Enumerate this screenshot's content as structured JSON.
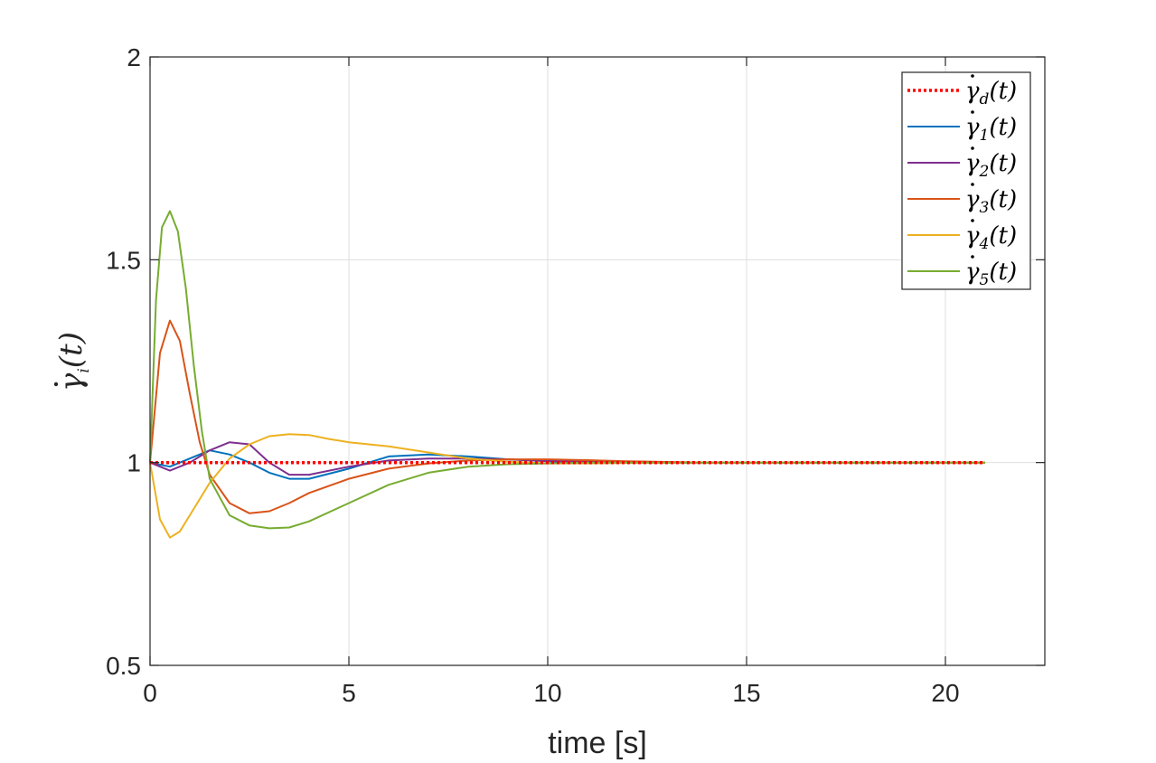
{
  "chart_data": {
    "type": "line",
    "title": "",
    "xlabel": "time [s]",
    "ylabel": {
      "sym": "γ",
      "sub": "i",
      "arg": "(t)"
    },
    "xlim": [
      0,
      22.5
    ],
    "ylim": [
      0.5,
      2
    ],
    "x_ticks": [
      0,
      5,
      10,
      15,
      20
    ],
    "x_tick_labels": [
      "0",
      "5",
      "10",
      "15",
      "20"
    ],
    "y_ticks": [
      0.5,
      1,
      1.5,
      2
    ],
    "y_tick_labels": [
      "0.5",
      "1",
      "1.5",
      "2"
    ],
    "grid": true,
    "legend_position": "top-right",
    "series": [
      {
        "name": "γ̇d(t)",
        "sym": "γ",
        "sub": "d",
        "arg": "(t)",
        "color": "#ff0000",
        "style": "dotted",
        "x": [
          0,
          21
        ],
        "values": [
          1,
          1
        ]
      },
      {
        "name": "γ̇1(t)",
        "sym": "γ",
        "sub": "1",
        "arg": "(t)",
        "color": "#0072bd",
        "style": "solid",
        "x": [
          0,
          0.5,
          1,
          1.5,
          2,
          2.5,
          3,
          3.5,
          4,
          5,
          6,
          7,
          8,
          9,
          10,
          11,
          12,
          14,
          17,
          21
        ],
        "values": [
          1,
          0.99,
          1.01,
          1.03,
          1.02,
          1.0,
          0.975,
          0.96,
          0.96,
          0.985,
          1.015,
          1.02,
          1.015,
          1.008,
          1.003,
          1.0,
          1.0,
          1.0,
          1.0,
          1.0
        ]
      },
      {
        "name": "γ̇2(t)",
        "sym": "γ",
        "sub": "2",
        "arg": "(t)",
        "color": "#7e2f8e",
        "style": "solid",
        "x": [
          0,
          0.5,
          1,
          1.5,
          2,
          2.5,
          3,
          3.5,
          4,
          5,
          6,
          7,
          8,
          9,
          10,
          11,
          12,
          14,
          17,
          21
        ],
        "values": [
          1,
          0.98,
          1.0,
          1.03,
          1.05,
          1.045,
          1.0,
          0.97,
          0.97,
          0.99,
          1.005,
          1.01,
          1.01,
          1.008,
          1.004,
          1.002,
          1.0,
          1.0,
          1.0,
          1.0
        ]
      },
      {
        "name": "γ̇3(t)",
        "sym": "γ",
        "sub": "3",
        "arg": "(t)",
        "color": "#d95319",
        "style": "solid",
        "x": [
          0,
          0.25,
          0.5,
          0.75,
          1,
          1.25,
          1.5,
          2,
          2.5,
          3,
          3.5,
          4,
          5,
          6,
          7,
          8,
          9,
          10,
          11,
          12,
          14,
          17,
          21
        ],
        "values": [
          1,
          1.27,
          1.35,
          1.3,
          1.17,
          1.05,
          0.97,
          0.9,
          0.875,
          0.88,
          0.9,
          0.925,
          0.96,
          0.985,
          0.998,
          1.005,
          1.008,
          1.008,
          1.006,
          1.003,
          1.0,
          1.0,
          1.0
        ]
      },
      {
        "name": "γ̇4(t)",
        "sym": "γ",
        "sub": "4",
        "arg": "(t)",
        "color": "#edb120",
        "style": "solid",
        "x": [
          0,
          0.25,
          0.5,
          0.75,
          1,
          1.5,
          2,
          2.5,
          3,
          3.5,
          4,
          4.5,
          5,
          6,
          7,
          8,
          9,
          10,
          11,
          12,
          14,
          17,
          21
        ],
        "values": [
          1,
          0.86,
          0.815,
          0.83,
          0.87,
          0.95,
          1.01,
          1.045,
          1.065,
          1.07,
          1.068,
          1.058,
          1.05,
          1.04,
          1.025,
          1.01,
          1.002,
          0.998,
          0.998,
          0.999,
          1.0,
          1.0,
          1.0
        ]
      },
      {
        "name": "γ̇5(t)",
        "sym": "γ",
        "sub": "5",
        "arg": "(t)",
        "color": "#77ac30",
        "style": "solid",
        "x": [
          0,
          0.15,
          0.3,
          0.5,
          0.7,
          0.9,
          1.1,
          1.3,
          1.5,
          2,
          2.5,
          3,
          3.5,
          4,
          5,
          6,
          7,
          8,
          9,
          10,
          11,
          12,
          14,
          17,
          21
        ],
        "values": [
          1,
          1.4,
          1.58,
          1.62,
          1.57,
          1.43,
          1.24,
          1.08,
          0.96,
          0.87,
          0.845,
          0.838,
          0.84,
          0.855,
          0.9,
          0.945,
          0.975,
          0.99,
          0.996,
          0.998,
          1.0,
          1.0,
          1.0,
          1.0,
          1.0
        ]
      }
    ]
  }
}
